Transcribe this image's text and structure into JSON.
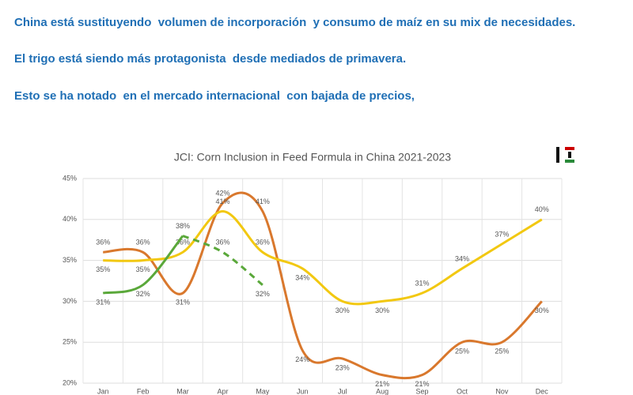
{
  "header": {
    "lines": [
      "China está sustituyendo  volumen de incorporación  y consumo de maíz en su mix de necesidades.",
      "El trigo está siendo más protagonista  desde mediados de primavera.",
      "Esto se ha notado  en el mercado internacional  con bajada de precios,"
    ]
  },
  "chart_data": {
    "type": "line",
    "title": "JCI: Corn Inclusion in Feed Formula in China 2021-2023",
    "categories": [
      "Jan",
      "Feb",
      "Mar",
      "Apr",
      "May",
      "Jun",
      "Jul",
      "Aug",
      "Sep",
      "Oct",
      "Nov",
      "Dec"
    ],
    "series": [
      {
        "color": "#d9782d",
        "values": [
          36,
          36,
          31,
          42,
          41,
          24,
          23,
          21,
          21,
          25,
          25,
          30
        ],
        "value_labels": [
          "36%",
          "36%",
          "31%",
          "42%",
          "41%",
          "24%",
          "23%",
          "21%",
          "21%",
          "25%",
          "25%",
          "30%"
        ]
      },
      {
        "color": "#f2c811",
        "values": [
          35,
          35,
          36,
          41,
          36,
          34,
          30,
          30,
          31,
          34,
          37,
          40
        ],
        "value_labels": [
          "35%",
          "35%",
          "36%",
          "41%",
          "36%",
          "34%",
          "30%",
          "30%",
          "31%",
          "34%",
          "37%",
          "40%"
        ]
      },
      {
        "color": "#5aa83a",
        "values": [
          31,
          32,
          38,
          36,
          32,
          null,
          null,
          null,
          null,
          null,
          null,
          null
        ],
        "value_labels": [
          "31%",
          "32%",
          "38%",
          "36%",
          "32%",
          null,
          null,
          null,
          null,
          null,
          null,
          null
        ],
        "dashed_from": 2
      }
    ],
    "ylim": [
      20,
      45
    ],
    "yticks": [
      {
        "value": 20,
        "label": "20%"
      },
      {
        "value": 25,
        "label": "25%"
      },
      {
        "value": 30,
        "label": "30%"
      },
      {
        "value": 35,
        "label": "35%"
      },
      {
        "value": 40,
        "label": "40%"
      },
      {
        "value": 45,
        "label": "45%"
      }
    ],
    "grid": true
  }
}
